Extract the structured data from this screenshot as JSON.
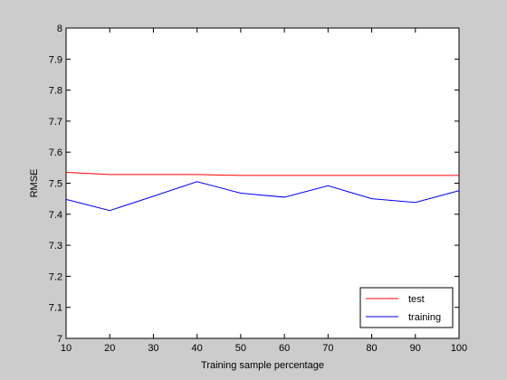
{
  "window_bg": "#cccccc",
  "plot_bg": "#ffffff",
  "chart_data": {
    "type": "line",
    "xlabel": "Training sample percentage",
    "ylabel": "RMSE",
    "xlim": [
      10,
      100
    ],
    "ylim": [
      7,
      8
    ],
    "xticks": [
      10,
      20,
      30,
      40,
      50,
      60,
      70,
      80,
      90,
      100
    ],
    "xtick_labels": [
      "10",
      "20",
      "30",
      "40",
      "50",
      "60",
      "70",
      "80",
      "90",
      "100"
    ],
    "yticks": [
      7,
      7.1,
      7.2,
      7.3,
      7.4,
      7.5,
      7.6,
      7.7,
      7.8,
      7.9,
      8
    ],
    "ytick_labels": [
      "7",
      "7.1",
      "7.2",
      "7.3",
      "7.4",
      "7.5",
      "7.6",
      "7.7",
      "7.8",
      "7.9",
      "8"
    ],
    "grid": false,
    "legend_position": "bottom-right",
    "x": [
      10,
      20,
      30,
      40,
      50,
      60,
      70,
      80,
      90,
      100
    ],
    "series": [
      {
        "name": "test",
        "color": "#ff0000",
        "values": [
          7.535,
          7.528,
          7.528,
          7.528,
          7.525,
          7.525,
          7.525,
          7.525,
          7.525,
          7.525
        ]
      },
      {
        "name": "training",
        "color": "#0000ff",
        "values": [
          7.448,
          7.412,
          7.458,
          7.505,
          7.468,
          7.455,
          7.492,
          7.45,
          7.438,
          7.476
        ]
      }
    ]
  }
}
